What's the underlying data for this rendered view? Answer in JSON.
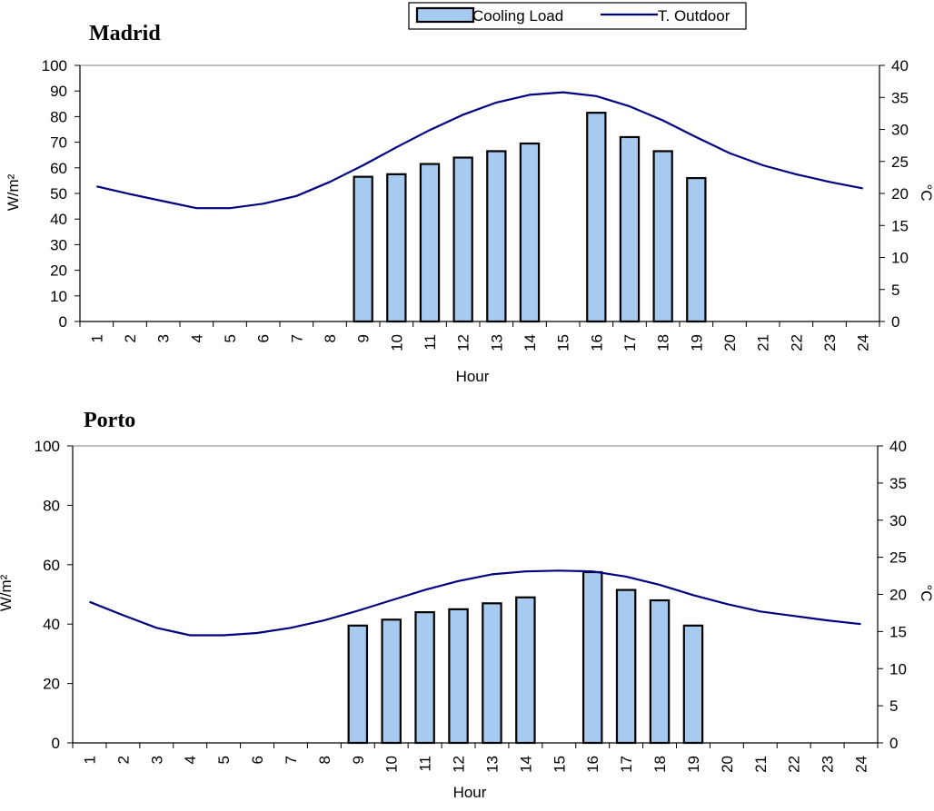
{
  "legend": {
    "bar_label": "Cooling Load",
    "line_label": "T. Outdoor",
    "placement": "top-right"
  },
  "colors": {
    "bar_fill": "#a6caf0",
    "bar_stroke": "#000000",
    "line": "#000080"
  },
  "chart_data": [
    {
      "type": "bar+line",
      "title": "Madrid",
      "xlabel": "Hour",
      "ylabel": "W/m²",
      "y2label": "°C",
      "ylim": [
        0,
        100
      ],
      "yticks": [
        0,
        10,
        20,
        30,
        40,
        50,
        60,
        70,
        80,
        90,
        100
      ],
      "y2lim": [
        0,
        40
      ],
      "y2ticks": [
        0,
        5,
        10,
        15,
        20,
        25,
        30,
        35,
        40
      ],
      "grid": "horizontal-top-only",
      "categories": [
        "1",
        "2",
        "3",
        "4",
        "5",
        "6",
        "7",
        "8",
        "9",
        "10",
        "11",
        "12",
        "13",
        "14",
        "15",
        "16",
        "17",
        "18",
        "19",
        "20",
        "21",
        "22",
        "23",
        "24"
      ],
      "series": [
        {
          "name": "Cooling Load",
          "type": "bar",
          "axis": "left",
          "values": [
            0,
            0,
            0,
            0,
            0,
            0,
            0,
            0,
            56.5,
            57.5,
            61.5,
            64,
            66.5,
            69.5,
            0,
            81.5,
            72,
            66.5,
            56,
            0,
            0,
            0,
            0,
            0
          ]
        },
        {
          "name": "T. Outdoor",
          "type": "line",
          "axis": "right",
          "values": [
            21.1,
            19.9,
            18.8,
            17.7,
            17.7,
            18.4,
            19.6,
            21.8,
            24.4,
            27.2,
            29.9,
            32.3,
            34.2,
            35.4,
            35.8,
            35.2,
            33.6,
            31.4,
            28.8,
            26.3,
            24.4,
            23.0,
            21.8,
            20.8
          ]
        }
      ]
    },
    {
      "type": "bar+line",
      "title": "Porto",
      "xlabel": "Hour",
      "ylabel": "W/m²",
      "y2label": "°C",
      "ylim": [
        0,
        100
      ],
      "yticks": [
        0,
        20,
        40,
        60,
        80,
        100
      ],
      "y2lim": [
        0,
        40
      ],
      "y2ticks": [
        0,
        5,
        10,
        15,
        20,
        25,
        30,
        35,
        40
      ],
      "grid": "horizontal-top-only",
      "categories": [
        "1",
        "2",
        "3",
        "4",
        "5",
        "6",
        "7",
        "8",
        "9",
        "10",
        "11",
        "12",
        "13",
        "14",
        "15",
        "16",
        "17",
        "18",
        "19",
        "20",
        "21",
        "22",
        "23",
        "24"
      ],
      "series": [
        {
          "name": "Cooling Load",
          "type": "bar",
          "axis": "left",
          "values": [
            0,
            0,
            0,
            0,
            0,
            0,
            0,
            0,
            39.5,
            41.5,
            44,
            45,
            47,
            49,
            0,
            57.5,
            51.5,
            48,
            39.5,
            0,
            0,
            0,
            0,
            0
          ]
        },
        {
          "name": "T. Outdoor",
          "type": "line",
          "axis": "right",
          "values": [
            19.0,
            17.2,
            15.5,
            14.5,
            14.5,
            14.8,
            15.5,
            16.5,
            17.8,
            19.2,
            20.6,
            21.8,
            22.7,
            23.1,
            23.2,
            23.1,
            22.4,
            21.3,
            19.9,
            18.7,
            17.7,
            17.1,
            16.5,
            16.0
          ]
        }
      ]
    }
  ]
}
